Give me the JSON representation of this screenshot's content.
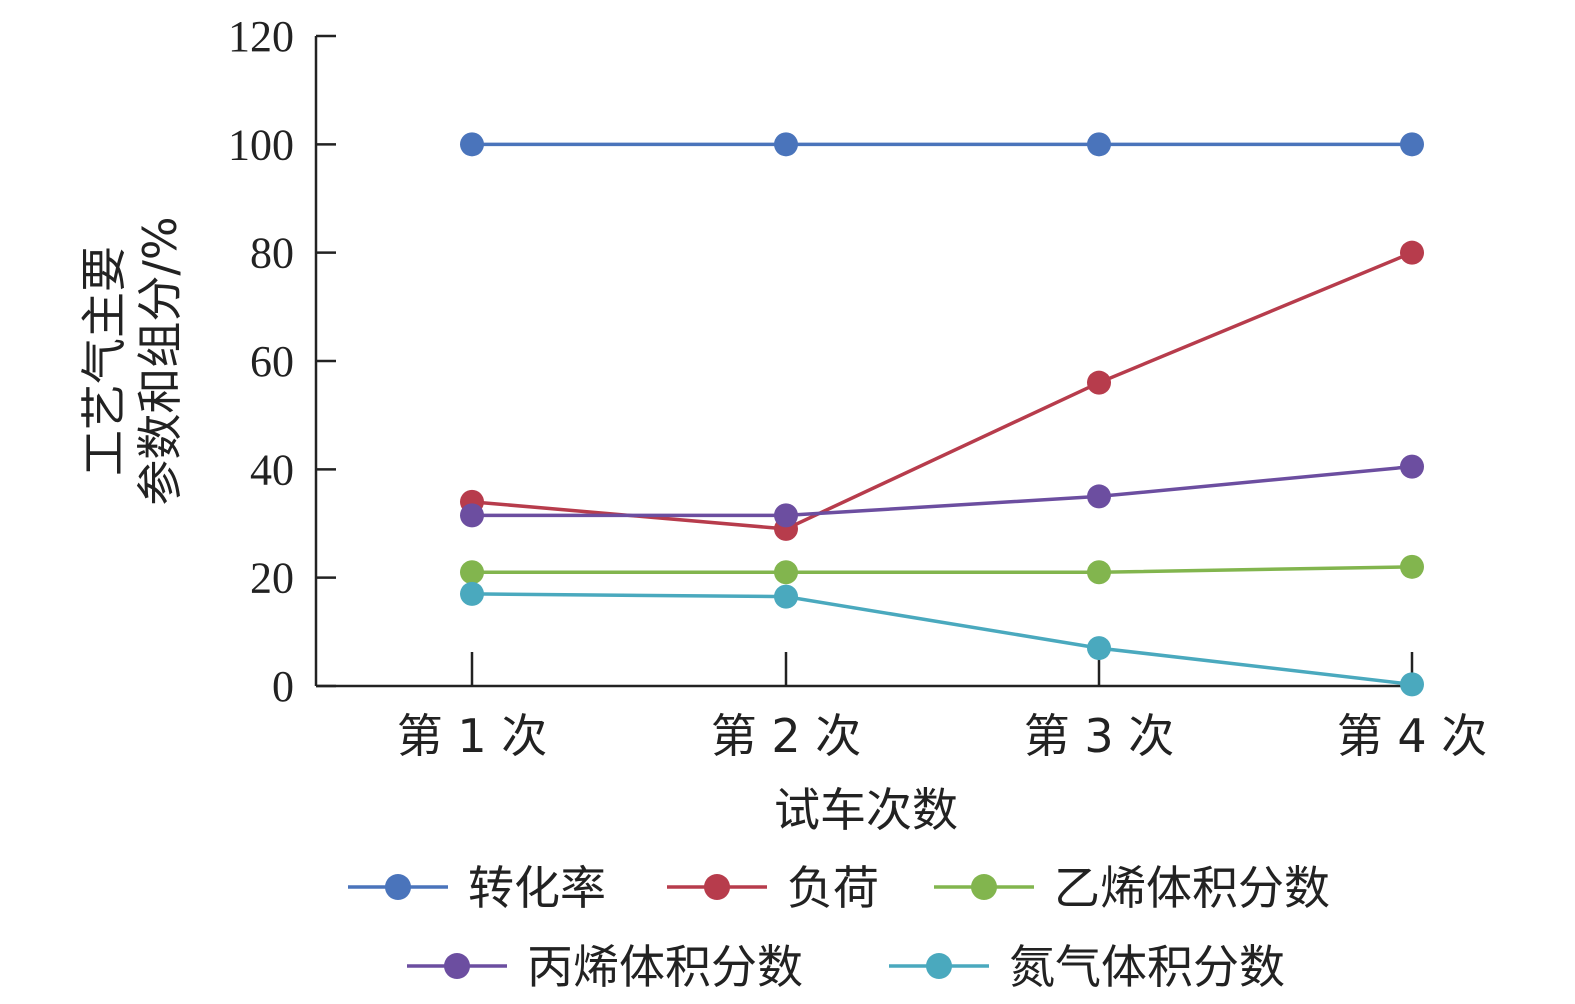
{
  "chart_data": {
    "type": "line",
    "categories": [
      "第 1 次",
      "第 2 次",
      "第 3 次",
      "第 4 次"
    ],
    "xlabel": "试车次数",
    "ylabel_lines": [
      "工艺气主要",
      "参数和组分/%"
    ],
    "ylim": [
      0,
      120
    ],
    "yticks": [
      0,
      20,
      40,
      60,
      80,
      100,
      120
    ],
    "grid": false,
    "legend_position": "bottom",
    "series": [
      {
        "name": "转化率",
        "color": "#4a74bb",
        "values": [
          100,
          100,
          100,
          100
        ]
      },
      {
        "name": "负荷",
        "color": "#b73c4c",
        "values": [
          34,
          29,
          56,
          80
        ]
      },
      {
        "name": "乙烯体积分数",
        "color": "#82b54e",
        "values": [
          21,
          21,
          21,
          22
        ]
      },
      {
        "name": "丙烯体积分数",
        "color": "#6c4ea0",
        "values": [
          31.5,
          31.5,
          35,
          40.5
        ]
      },
      {
        "name": "氮气体积分数",
        "color": "#4aa9be",
        "values": [
          17,
          16.5,
          7,
          0.3
        ]
      }
    ]
  }
}
